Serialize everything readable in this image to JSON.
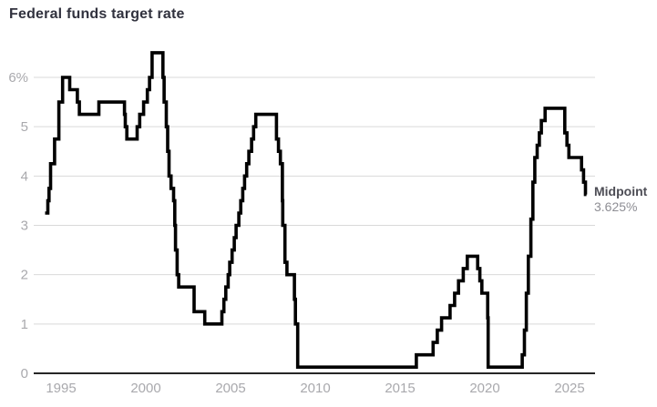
{
  "chart": {
    "title": "Federal funds target rate",
    "annotation": {
      "label": "Midpoint",
      "value": "3.625%"
    },
    "colors": {
      "line": "#000000",
      "grid": "#d9d9d9",
      "zero_axis": "#262626",
      "tick_label": "#a9a9ad",
      "title": "#31323e",
      "annotation_label": "#4d4d55",
      "annotation_value": "#8e8e94"
    }
  },
  "chart_data": {
    "type": "line",
    "step": true,
    "title": "Federal funds target rate",
    "xlabel": "",
    "ylabel": "",
    "legend": "none",
    "grid": "horizontal",
    "xlim": [
      1993.9,
      2026.3
    ],
    "ylim": [
      0,
      6.75
    ],
    "x_ticks": [
      1995,
      2000,
      2005,
      2010,
      2015,
      2020,
      2025
    ],
    "y_ticks": [
      {
        "v": 0,
        "label": "0"
      },
      {
        "v": 1,
        "label": "1"
      },
      {
        "v": 2,
        "label": "2"
      },
      {
        "v": 3,
        "label": "3"
      },
      {
        "v": 4,
        "label": "4"
      },
      {
        "v": 5,
        "label": "5"
      },
      {
        "v": 6,
        "label": "6%"
      }
    ],
    "annotation": {
      "label": "Midpoint",
      "value": "3.625%"
    },
    "x_end": 2026.0,
    "series": [
      {
        "name": "Federal funds target rate (midpoint)",
        "points": [
          [
            1994.06,
            3.25
          ],
          [
            1994.22,
            3.5
          ],
          [
            1994.29,
            3.75
          ],
          [
            1994.38,
            4.25
          ],
          [
            1994.62,
            4.75
          ],
          [
            1994.87,
            5.5
          ],
          [
            1995.09,
            6.0
          ],
          [
            1995.51,
            5.75
          ],
          [
            1995.96,
            5.5
          ],
          [
            1996.08,
            5.25
          ],
          [
            1997.23,
            5.5
          ],
          [
            1998.74,
            5.25
          ],
          [
            1998.79,
            5.0
          ],
          [
            1998.88,
            4.75
          ],
          [
            1999.49,
            5.0
          ],
          [
            1999.64,
            5.25
          ],
          [
            1999.87,
            5.5
          ],
          [
            2000.09,
            5.75
          ],
          [
            2000.22,
            6.0
          ],
          [
            2000.37,
            6.5
          ],
          [
            2001.01,
            6.0
          ],
          [
            2001.08,
            5.5
          ],
          [
            2001.21,
            5.0
          ],
          [
            2001.29,
            4.5
          ],
          [
            2001.37,
            4.0
          ],
          [
            2001.49,
            3.75
          ],
          [
            2001.64,
            3.5
          ],
          [
            2001.71,
            3.0
          ],
          [
            2001.75,
            2.5
          ],
          [
            2001.85,
            2.0
          ],
          [
            2001.94,
            1.75
          ],
          [
            2002.85,
            1.25
          ],
          [
            2003.48,
            1.0
          ],
          [
            2004.49,
            1.25
          ],
          [
            2004.61,
            1.5
          ],
          [
            2004.72,
            1.75
          ],
          [
            2004.86,
            2.0
          ],
          [
            2004.95,
            2.25
          ],
          [
            2005.09,
            2.5
          ],
          [
            2005.22,
            2.75
          ],
          [
            2005.33,
            3.0
          ],
          [
            2005.49,
            3.25
          ],
          [
            2005.6,
            3.5
          ],
          [
            2005.72,
            3.75
          ],
          [
            2005.83,
            4.0
          ],
          [
            2005.95,
            4.25
          ],
          [
            2006.08,
            4.5
          ],
          [
            2006.24,
            4.75
          ],
          [
            2006.36,
            5.0
          ],
          [
            2006.49,
            5.25
          ],
          [
            2007.71,
            4.75
          ],
          [
            2007.83,
            4.5
          ],
          [
            2007.94,
            4.25
          ],
          [
            2008.06,
            3.5
          ],
          [
            2008.08,
            3.0
          ],
          [
            2008.21,
            2.25
          ],
          [
            2008.33,
            2.0
          ],
          [
            2008.77,
            1.5
          ],
          [
            2008.83,
            1.0
          ],
          [
            2008.96,
            0.125
          ],
          [
            2015.96,
            0.375
          ],
          [
            2016.95,
            0.625
          ],
          [
            2017.2,
            0.875
          ],
          [
            2017.45,
            1.125
          ],
          [
            2017.95,
            1.375
          ],
          [
            2018.22,
            1.625
          ],
          [
            2018.45,
            1.875
          ],
          [
            2018.73,
            2.125
          ],
          [
            2018.97,
            2.375
          ],
          [
            2019.58,
            2.125
          ],
          [
            2019.71,
            1.875
          ],
          [
            2019.83,
            1.625
          ],
          [
            2020.17,
            1.125
          ],
          [
            2020.2,
            0.125
          ],
          [
            2022.21,
            0.375
          ],
          [
            2022.34,
            0.875
          ],
          [
            2022.45,
            1.625
          ],
          [
            2022.57,
            2.375
          ],
          [
            2022.72,
            3.125
          ],
          [
            2022.84,
            3.875
          ],
          [
            2022.95,
            4.375
          ],
          [
            2023.09,
            4.625
          ],
          [
            2023.22,
            4.875
          ],
          [
            2023.34,
            5.125
          ],
          [
            2023.56,
            5.375
          ],
          [
            2024.72,
            4.875
          ],
          [
            2024.85,
            4.625
          ],
          [
            2024.96,
            4.375
          ],
          [
            2025.71,
            4.125
          ],
          [
            2025.83,
            3.875
          ],
          [
            2025.94,
            3.625
          ]
        ]
      }
    ]
  }
}
